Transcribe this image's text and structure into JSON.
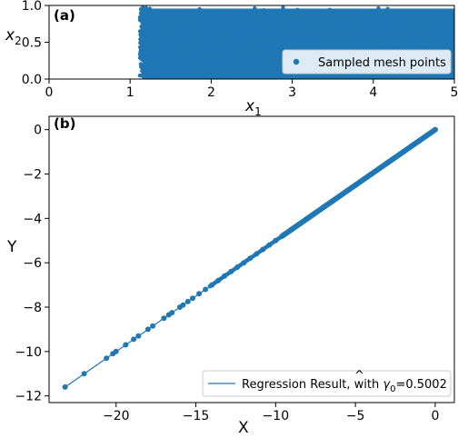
{
  "colors": {
    "series": "#1f77b4",
    "axis": "#000000",
    "legend_border": "#cccccc",
    "background": "#ffffff"
  },
  "chart_data": [
    {
      "panel_label": "(a)",
      "type": "scatter",
      "xlabel_var": "x",
      "xlabel_sub": "1",
      "ylabel_var": "x",
      "ylabel_sub": "2",
      "xlim": [
        0,
        5
      ],
      "ylim": [
        0,
        1
      ],
      "xticks": [
        0,
        1,
        2,
        3,
        4,
        5
      ],
      "yticks": [
        0.0,
        0.5,
        1.0
      ],
      "ytick_labels": [
        "0.0",
        "0.5",
        "1.0"
      ],
      "grid": false,
      "legend_position": "bottom-right",
      "series": [
        {
          "name": "Sampled mesh points",
          "marker": "circle",
          "x_range": [
            1.12,
            5.0
          ],
          "y_range": [
            0.0,
            0.97
          ],
          "distribution": "dense uniform fill"
        }
      ]
    },
    {
      "panel_label": "(b)",
      "type": "line",
      "xlabel": "X",
      "ylabel": "Y",
      "xlim": [
        -24.2,
        1.2
      ],
      "ylim": [
        -12.3,
        0.6
      ],
      "xticks": [
        -20,
        -15,
        -10,
        -5,
        0
      ],
      "yticks": [
        0,
        -2,
        -4,
        -6,
        -8,
        -10,
        -12
      ],
      "grid": false,
      "legend_position": "bottom-right",
      "series": [
        {
          "kind": "scatter",
          "marker": "circle",
          "x": [
            -23.2,
            -22.0,
            -20.6,
            -20.2,
            -20.0,
            -19.4,
            -18.9,
            -18.6,
            -18.0,
            -17.7,
            -17.0,
            -16.7,
            -16.5,
            -16.0,
            -15.8,
            -15.5,
            -15.2,
            -14.8,
            -14.4,
            -14.0,
            -13.6,
            -13.2,
            -12.8,
            -12.4,
            -12.0,
            -11.6,
            -11.2,
            -10.8,
            -10.4,
            -10.0,
            -9.5,
            -9.0,
            -8.5,
            -8.0,
            -7.5,
            -7.0,
            -6.5,
            -6.0,
            -5.5,
            -5.0,
            -4.5,
            -4.0,
            -3.5,
            -3.0,
            -2.5,
            -2.0,
            -1.5,
            -1.0,
            -0.5,
            0.0
          ],
          "y": [
            -11.6,
            -11.0,
            -10.3,
            -10.1,
            -10.0,
            -9.7,
            -9.45,
            -9.3,
            -9.0,
            -8.85,
            -8.5,
            -8.35,
            -8.25,
            -8.0,
            -7.9,
            -7.75,
            -7.6,
            -7.4,
            -7.2,
            -7.0,
            -6.8,
            -6.6,
            -6.4,
            -6.2,
            -6.0,
            -5.8,
            -5.6,
            -5.4,
            -5.2,
            -5.0,
            -4.75,
            -4.5,
            -4.25,
            -4.0,
            -3.75,
            -3.5,
            -3.25,
            -3.0,
            -2.75,
            -2.5,
            -2.25,
            -2.0,
            -1.75,
            -1.5,
            -1.25,
            -1.0,
            -0.75,
            -0.5,
            -0.25,
            0.0
          ]
        },
        {
          "kind": "line",
          "name_prefix": "Regression Result, with ",
          "name_symbol": "γ",
          "name_hat": "^",
          "name_sub": "0",
          "name_suffix": "=0.5002",
          "slope": 0.5002,
          "x_range": [
            -23.2,
            0.0
          ]
        }
      ]
    }
  ]
}
